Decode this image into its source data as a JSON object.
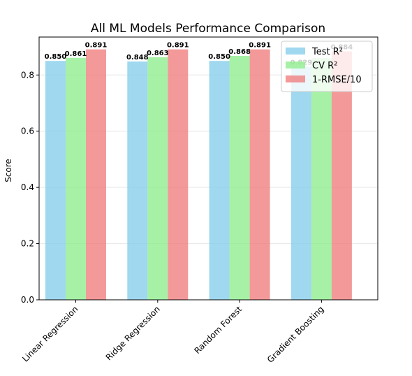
{
  "chart_data": {
    "type": "bar",
    "title": "All ML Models Performance Comparison",
    "xlabel": "",
    "ylabel": "Score",
    "categories": [
      "Linear Regression",
      "Ridge Regression",
      "Random Forest",
      "Gradient Boosting"
    ],
    "series": [
      {
        "name": "Test R²",
        "values": [
          0.85,
          0.848,
          0.85,
          0.829
        ],
        "labels": [
          "0.850",
          "0.848",
          "0.850",
          "0.829"
        ],
        "color": "#87ceeb"
      },
      {
        "name": "CV R²",
        "values": [
          0.861,
          0.863,
          0.868,
          0.86
        ],
        "labels": [
          "0.861",
          "0.863",
          "0.868",
          ""
        ],
        "color": "#90ee90"
      },
      {
        "name": "1-RMSE/10",
        "values": [
          0.891,
          0.891,
          0.891,
          0.884
        ],
        "labels": [
          "0.891",
          "0.891",
          "0.891",
          "0.884"
        ],
        "color": "#f08080"
      }
    ],
    "ylim": [
      0,
      0.935
    ],
    "yticks": [
      0.0,
      0.2,
      0.4,
      0.6,
      0.8
    ],
    "ytick_labels": [
      "0.0",
      "0.2",
      "0.4",
      "0.6",
      "0.8"
    ],
    "grid": true,
    "legend_position": "top-right"
  }
}
